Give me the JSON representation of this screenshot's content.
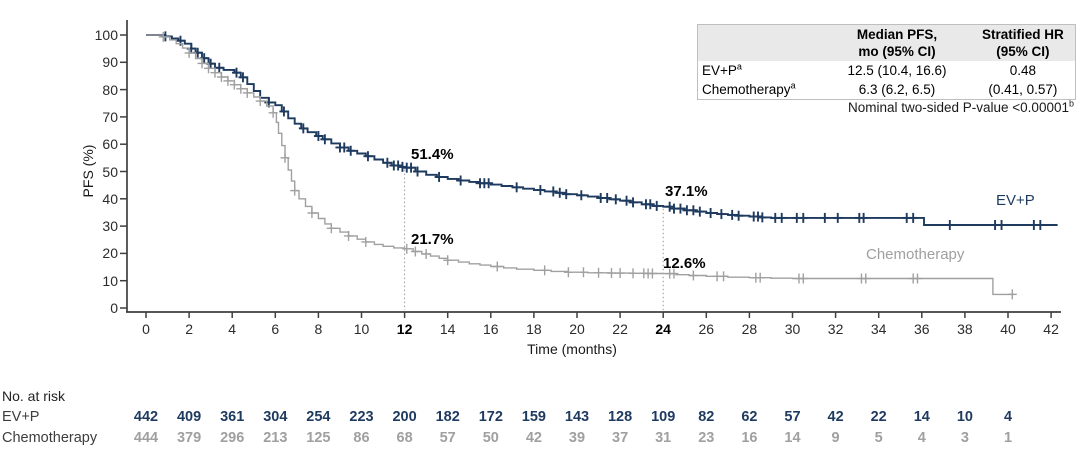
{
  "colors": {
    "evp": "#1e3a5f",
    "chemo": "#a0a0a0",
    "axis": "#3f3f3f",
    "dotted": "#999999",
    "annotation": "#000000",
    "table_header_bg": "#e9e9e9",
    "table_border": "#bfbfbf"
  },
  "y_axis": {
    "label": "PFS (%)",
    "ticks": [
      0,
      10,
      20,
      30,
      40,
      50,
      60,
      70,
      80,
      90,
      100
    ]
  },
  "x_axis": {
    "label": "Time (months)",
    "ticks": [
      0,
      2,
      4,
      6,
      8,
      10,
      12,
      14,
      16,
      18,
      20,
      22,
      24,
      26,
      28,
      30,
      32,
      34,
      36,
      38,
      40,
      42
    ],
    "bold_ticks": [
      12,
      24
    ]
  },
  "stats_table": {
    "col1": {
      "line1": "Median PFS,",
      "line2": "mo (95% CI)"
    },
    "col2": {
      "line1": "Stratified HR",
      "line2": "(95% CI)"
    },
    "rows": [
      {
        "label": "EV+P",
        "sup": "a",
        "median": "12.5 (10.4, 16.6)",
        "hr": "0.48"
      },
      {
        "label": "Chemotherapy",
        "sup": "a",
        "median": "6.3 (6.2, 6.5)",
        "hr": "(0.41, 0.57)"
      }
    ],
    "footnote": "Nominal two-sided P-value <0.00001",
    "footnote_sup": "b"
  },
  "annotations": {
    "evp_12": "51.4%",
    "chemo_12": "21.7%",
    "evp_24": "37.1%",
    "chemo_24": "12.6%",
    "evp_curve_label": "EV+P",
    "chemo_curve_label": "Chemotherapy"
  },
  "at_risk": {
    "title": "No. at risk",
    "months": [
      0,
      2,
      4,
      6,
      8,
      10,
      12,
      14,
      16,
      18,
      20,
      22,
      24,
      26,
      28,
      30,
      32,
      34,
      36,
      38,
      40
    ],
    "rows": [
      {
        "label": "EV+P",
        "color_key": "evp",
        "values": [
          442,
          409,
          361,
          304,
          254,
          223,
          200,
          182,
          172,
          159,
          143,
          128,
          109,
          82,
          62,
          57,
          42,
          22,
          14,
          10,
          4
        ]
      },
      {
        "label": "Chemotherapy",
        "color_key": "chemo",
        "values": [
          444,
          379,
          296,
          213,
          125,
          86,
          68,
          57,
          50,
          42,
          39,
          37,
          31,
          23,
          16,
          14,
          9,
          5,
          4,
          3,
          1
        ]
      }
    ]
  },
  "chart_data": {
    "type": "line",
    "subtype": "kaplan-meier",
    "title": "",
    "xlabel": "Time (months)",
    "ylabel": "PFS (%)",
    "xlim": [
      0,
      42
    ],
    "ylim": [
      0,
      100
    ],
    "grid": false,
    "legend_position": "on-curve-right",
    "key_values": {
      "evp_median_pfs_mo": "12.5 (10.4, 16.6)",
      "chemo_median_pfs_mo": "6.3 (6.2, 6.5)",
      "stratified_hr": "0.48 (0.41, 0.57)",
      "p_value": "<0.00001",
      "evp_pct_at_12mo": 51.4,
      "evp_pct_at_24mo": 37.1,
      "chemo_pct_at_12mo": 21.7,
      "chemo_pct_at_24mo": 12.6
    },
    "reference_lines": [
      {
        "x": 12,
        "top_pct": 51.4
      },
      {
        "x": 24,
        "top_pct": 37.1
      }
    ],
    "series": [
      {
        "name": "EV+P",
        "color_key": "evp",
        "steps": [
          [
            0,
            100
          ],
          [
            0.9,
            99.5
          ],
          [
            1.2,
            98.7
          ],
          [
            1.5,
            97.9
          ],
          [
            1.8,
            96.8
          ],
          [
            2.1,
            95
          ],
          [
            2.3,
            93.5
          ],
          [
            2.6,
            91.5
          ],
          [
            2.9,
            89.5
          ],
          [
            3.2,
            88
          ],
          [
            3.6,
            87.2
          ],
          [
            4.1,
            86.2
          ],
          [
            4.4,
            84.5
          ],
          [
            4.7,
            82
          ],
          [
            5,
            79.5
          ],
          [
            5.3,
            77
          ],
          [
            5.7,
            75.3
          ],
          [
            6,
            74.3
          ],
          [
            6.3,
            72
          ],
          [
            6.6,
            69.5
          ],
          [
            6.9,
            67.5
          ],
          [
            7.2,
            65.8
          ],
          [
            7.5,
            64.4
          ],
          [
            7.9,
            63
          ],
          [
            8.2,
            61.8
          ],
          [
            8.6,
            60.3
          ],
          [
            9,
            58.8
          ],
          [
            9.4,
            57.6
          ],
          [
            9.8,
            56.6
          ],
          [
            10.2,
            55.6
          ],
          [
            10.6,
            54.4
          ],
          [
            11,
            53.2
          ],
          [
            11.4,
            52.2
          ],
          [
            11.8,
            51.7
          ],
          [
            12,
            51.4
          ],
          [
            12.5,
            50
          ],
          [
            13,
            48.8
          ],
          [
            13.5,
            48
          ],
          [
            14,
            47.3
          ],
          [
            14.5,
            46.7
          ],
          [
            15,
            46.2
          ],
          [
            15.5,
            45.7
          ],
          [
            16,
            45.2
          ],
          [
            16.5,
            44.7
          ],
          [
            17,
            44.2
          ],
          [
            17.5,
            43.7
          ],
          [
            18,
            43.2
          ],
          [
            18.5,
            42.7
          ],
          [
            19,
            42.2
          ],
          [
            19.5,
            41.7
          ],
          [
            20,
            41.3
          ],
          [
            20.5,
            40.8
          ],
          [
            21,
            40.3
          ],
          [
            21.5,
            39.8
          ],
          [
            22,
            39.3
          ],
          [
            22.5,
            38.7
          ],
          [
            23,
            38
          ],
          [
            23.5,
            37.4
          ],
          [
            24,
            37.1
          ],
          [
            24.5,
            36.4
          ],
          [
            25,
            35.8
          ],
          [
            25.5,
            35.3
          ],
          [
            26,
            34.8
          ],
          [
            26.5,
            34.4
          ],
          [
            27,
            34.1
          ],
          [
            27.5,
            33.8
          ],
          [
            28,
            33.5
          ],
          [
            28.5,
            33.2
          ],
          [
            29,
            33
          ],
          [
            36.1,
            33
          ],
          [
            36.1,
            30.4
          ],
          [
            42.3,
            30.4
          ]
        ],
        "censor_months": [
          0.9,
          1.6,
          2.1,
          2.4,
          2.7,
          3.0,
          3.4,
          4.2,
          4.5,
          5.7,
          6.4,
          7.3,
          8.0,
          8.3,
          9.0,
          9.2,
          9.5,
          10.3,
          11.2,
          11.5,
          11.7,
          11.9,
          12.1,
          12.3,
          12.6,
          13.6,
          14.6,
          15.5,
          15.7,
          15.9,
          17.2,
          18.3,
          18.9,
          19.2,
          19.5,
          20.2,
          21.1,
          21.4,
          21.8,
          22.3,
          22.6,
          23.2,
          23.4,
          23.7,
          24.3,
          24.5,
          24.8,
          25.1,
          25.4,
          25.7,
          26.2,
          26.7,
          27.2,
          27.5,
          28.2,
          28.4,
          28.6,
          29.2,
          29.5,
          30.2,
          30.5,
          31.5,
          32.1,
          33.1,
          33.3,
          35.3,
          35.6,
          37.3,
          39.4,
          39.7,
          41.2,
          41.5
        ]
      },
      {
        "name": "Chemotherapy",
        "color_key": "chemo",
        "steps": [
          [
            0,
            100
          ],
          [
            0.8,
            99.3
          ],
          [
            1.1,
            98.2
          ],
          [
            1.4,
            96.8
          ],
          [
            1.7,
            95.2
          ],
          [
            2,
            93.4
          ],
          [
            2.3,
            91.4
          ],
          [
            2.6,
            89.6
          ],
          [
            2.9,
            87.8
          ],
          [
            3.2,
            86.2
          ],
          [
            3.5,
            84.6
          ],
          [
            3.8,
            83.2
          ],
          [
            4.1,
            81.8
          ],
          [
            4.4,
            80.3
          ],
          [
            4.7,
            78.8
          ],
          [
            5,
            77.3
          ],
          [
            5.3,
            75.8
          ],
          [
            5.6,
            74
          ],
          [
            5.9,
            71.5
          ],
          [
            6.05,
            68
          ],
          [
            6.15,
            64
          ],
          [
            6.3,
            59.5
          ],
          [
            6.45,
            55
          ],
          [
            6.6,
            50.5
          ],
          [
            6.75,
            46.5
          ],
          [
            6.9,
            43
          ],
          [
            7.1,
            40
          ],
          [
            7.4,
            37.2
          ],
          [
            7.7,
            34.8
          ],
          [
            8,
            32.8
          ],
          [
            8.3,
            30.8
          ],
          [
            8.6,
            29.2
          ],
          [
            9,
            27.8
          ],
          [
            9.4,
            26.4
          ],
          [
            9.8,
            25.2
          ],
          [
            10.2,
            24.2
          ],
          [
            10.6,
            23.3
          ],
          [
            11,
            22.6
          ],
          [
            11.5,
            22
          ],
          [
            12,
            21.7
          ],
          [
            12.4,
            20.7
          ],
          [
            12.8,
            19.8
          ],
          [
            13.2,
            19
          ],
          [
            13.6,
            18.2
          ],
          [
            14,
            17.5
          ],
          [
            14.5,
            16.8
          ],
          [
            15,
            16.2
          ],
          [
            15.5,
            15.7
          ],
          [
            16,
            15.2
          ],
          [
            16.6,
            14.7
          ],
          [
            17.2,
            14.2
          ],
          [
            18,
            13.8
          ],
          [
            18.8,
            13.4
          ],
          [
            19.6,
            13.1
          ],
          [
            20.5,
            12.9
          ],
          [
            21.5,
            12.8
          ],
          [
            22.5,
            12.7
          ],
          [
            23.2,
            12.65
          ],
          [
            24,
            12.6
          ],
          [
            24.6,
            12.2
          ],
          [
            25.2,
            11.9
          ],
          [
            26,
            11.6
          ],
          [
            27,
            11.3
          ],
          [
            28,
            11.1
          ],
          [
            29,
            10.9
          ],
          [
            30,
            10.8
          ],
          [
            39.3,
            10.8
          ],
          [
            39.3,
            5
          ],
          [
            40.3,
            5
          ]
        ],
        "censor_months": [
          0.8,
          2.0,
          2.6,
          2.9,
          3.2,
          3.5,
          3.8,
          4.1,
          4.4,
          4.7,
          5.3,
          5.9,
          6.45,
          6.9,
          7.7,
          8.6,
          9.4,
          10.2,
          12.1,
          12.5,
          13.0,
          14.0,
          16.3,
          18.5,
          19.6,
          20.3,
          21.0,
          21.6,
          22.0,
          22.6,
          23.1,
          23.3,
          23.5,
          24.3,
          24.5,
          25.4,
          26.5,
          26.8,
          28.3,
          28.5,
          30.3,
          30.5,
          33.2,
          33.4,
          35.6,
          35.8,
          40.2
        ]
      }
    ]
  }
}
